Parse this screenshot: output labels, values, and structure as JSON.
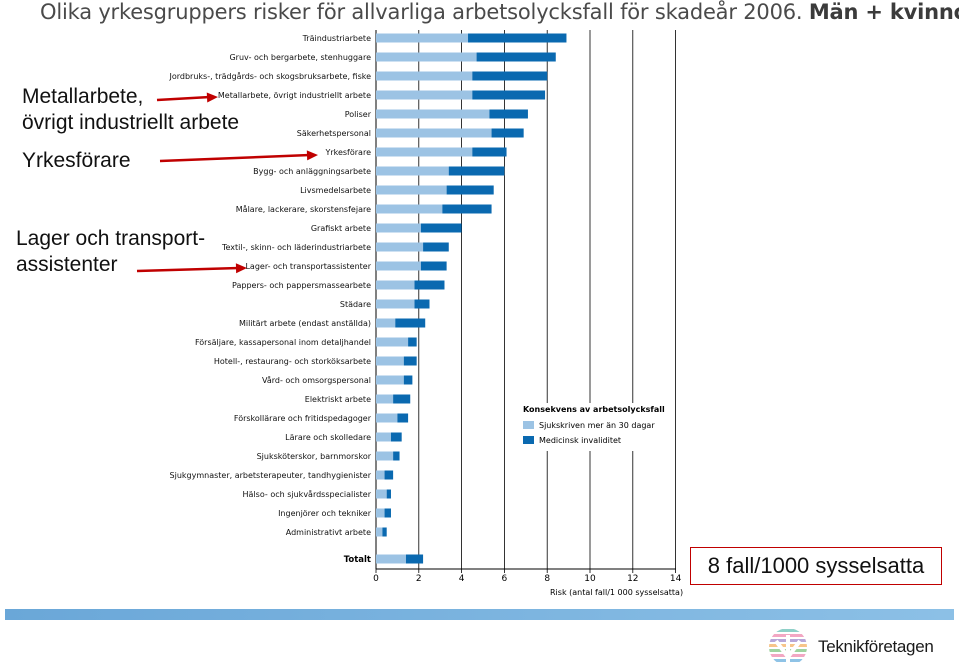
{
  "title": {
    "main": "Olika yrkesgruppers risker för allvarliga arbetsolycksfall för skadeår 2006.",
    "emphasis": "Män + kvinnor."
  },
  "callouts": {
    "metall": [
      "Metallarbete,",
      "övrigt industriellt arbete"
    ],
    "yrkesforare": [
      "Yrkesförare"
    ],
    "lager": [
      "Lager och transport-",
      "assistenter"
    ]
  },
  "note_box": "8 fall/1000 sysselsatta",
  "logo": {
    "text": "Teknikföretagen",
    "icon": "teknikforetagen-logo-icon"
  },
  "colors": {
    "light": "#9cc3e4",
    "dark": "#0a69b0",
    "arrow": "#c00000",
    "footer": "#6aa7d8"
  },
  "chart_data": {
    "type": "bar",
    "orientation": "horizontal",
    "stacked": true,
    "xlabel": "Risk (antal fall/1 000 sysselsatta)",
    "xlim": [
      0,
      14
    ],
    "xticks": [
      0,
      2,
      4,
      6,
      8,
      10,
      12,
      14
    ],
    "grid": true,
    "legend": {
      "title": "Konsekvens av arbetsolycksfall",
      "position": "bottom-right"
    },
    "series": [
      {
        "name": "Sjukskriven mer än 30 dagar",
        "color": "#9cc3e4"
      },
      {
        "name": "Medicinsk invaliditet",
        "color": "#0a69b0"
      }
    ],
    "categories": [
      "Träindustriarbete",
      "Gruv- och bergarbete, stenhuggare",
      "Jordbruks-, trädgårds- och skogsbruksarbete, fiske",
      "Metallarbete, övrigt industriellt arbete",
      "Poliser",
      "Säkerhetspersonal",
      "Yrkesförare",
      "Bygg- och anläggningsarbete",
      "Livsmedelsarbete",
      "Målare, lackerare, skorstensfejare",
      "Grafiskt arbete",
      "Textil-, skinn- och läderindustriarbete",
      "Lager- och transportassistenter",
      "Pappers- och pappersmassearbete",
      "Städare",
      "Militärt arbete (endast anställda)",
      "Försäljare, kassapersonal inom detaljhandel",
      "Hotell-, restaurang- och storköksarbete",
      "Vård- och omsorgspersonal",
      "Elektriskt arbete",
      "Förskollärare och fritidspedagoger",
      "Lärare och skolledare",
      "Sjuksköterskor, barnmorskor",
      "Sjukgymnaster, arbetsterapeuter, tandhygienister",
      "Hälso- och sjukvårdsspecialister",
      "Ingenjörer och tekniker",
      "Administrativt arbete"
    ],
    "values_sjukskriven": [
      4.3,
      4.7,
      4.5,
      4.5,
      5.3,
      5.4,
      4.5,
      3.4,
      3.3,
      3.1,
      2.1,
      2.2,
      2.1,
      1.8,
      1.8,
      0.9,
      1.5,
      1.3,
      1.3,
      0.8,
      1.0,
      0.7,
      0.8,
      0.4,
      0.5,
      0.4,
      0.3
    ],
    "values_invaliditet": [
      4.6,
      3.7,
      3.5,
      3.4,
      1.8,
      1.5,
      1.6,
      2.6,
      2.2,
      2.3,
      1.9,
      1.2,
      1.2,
      1.4,
      0.7,
      1.4,
      0.4,
      0.6,
      0.4,
      0.8,
      0.5,
      0.5,
      0.3,
      0.4,
      0.2,
      0.3,
      0.2
    ],
    "total": {
      "label": "Totalt",
      "sjukskriven": 1.4,
      "invaliditet": 0.8
    }
  }
}
